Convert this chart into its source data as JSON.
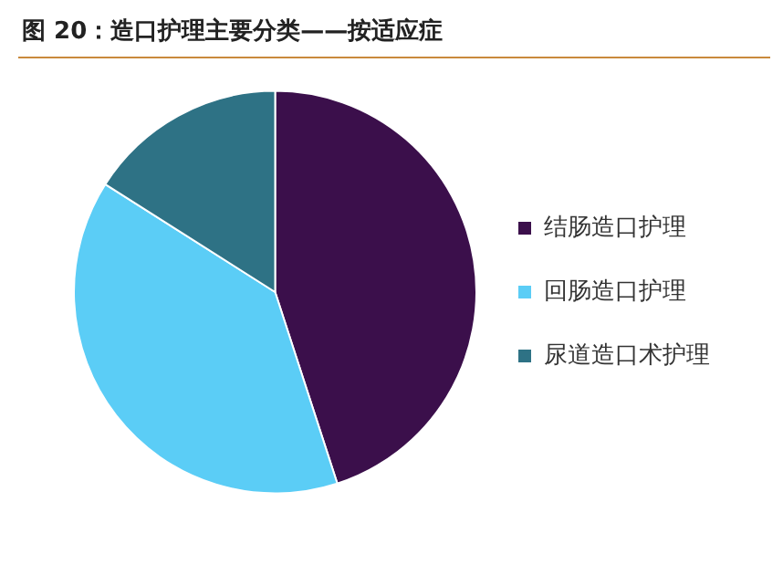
{
  "chart_data": {
    "type": "pie",
    "title": "图 20：造口护理主要分类——按适应症",
    "categories": [
      "结肠造口护理",
      "回肠造口护理",
      "尿道造口术护理"
    ],
    "values": [
      45,
      39,
      16
    ],
    "colors": [
      "#3b0f4b",
      "#5bcdf6",
      "#2e7285"
    ],
    "legend": "right"
  }
}
